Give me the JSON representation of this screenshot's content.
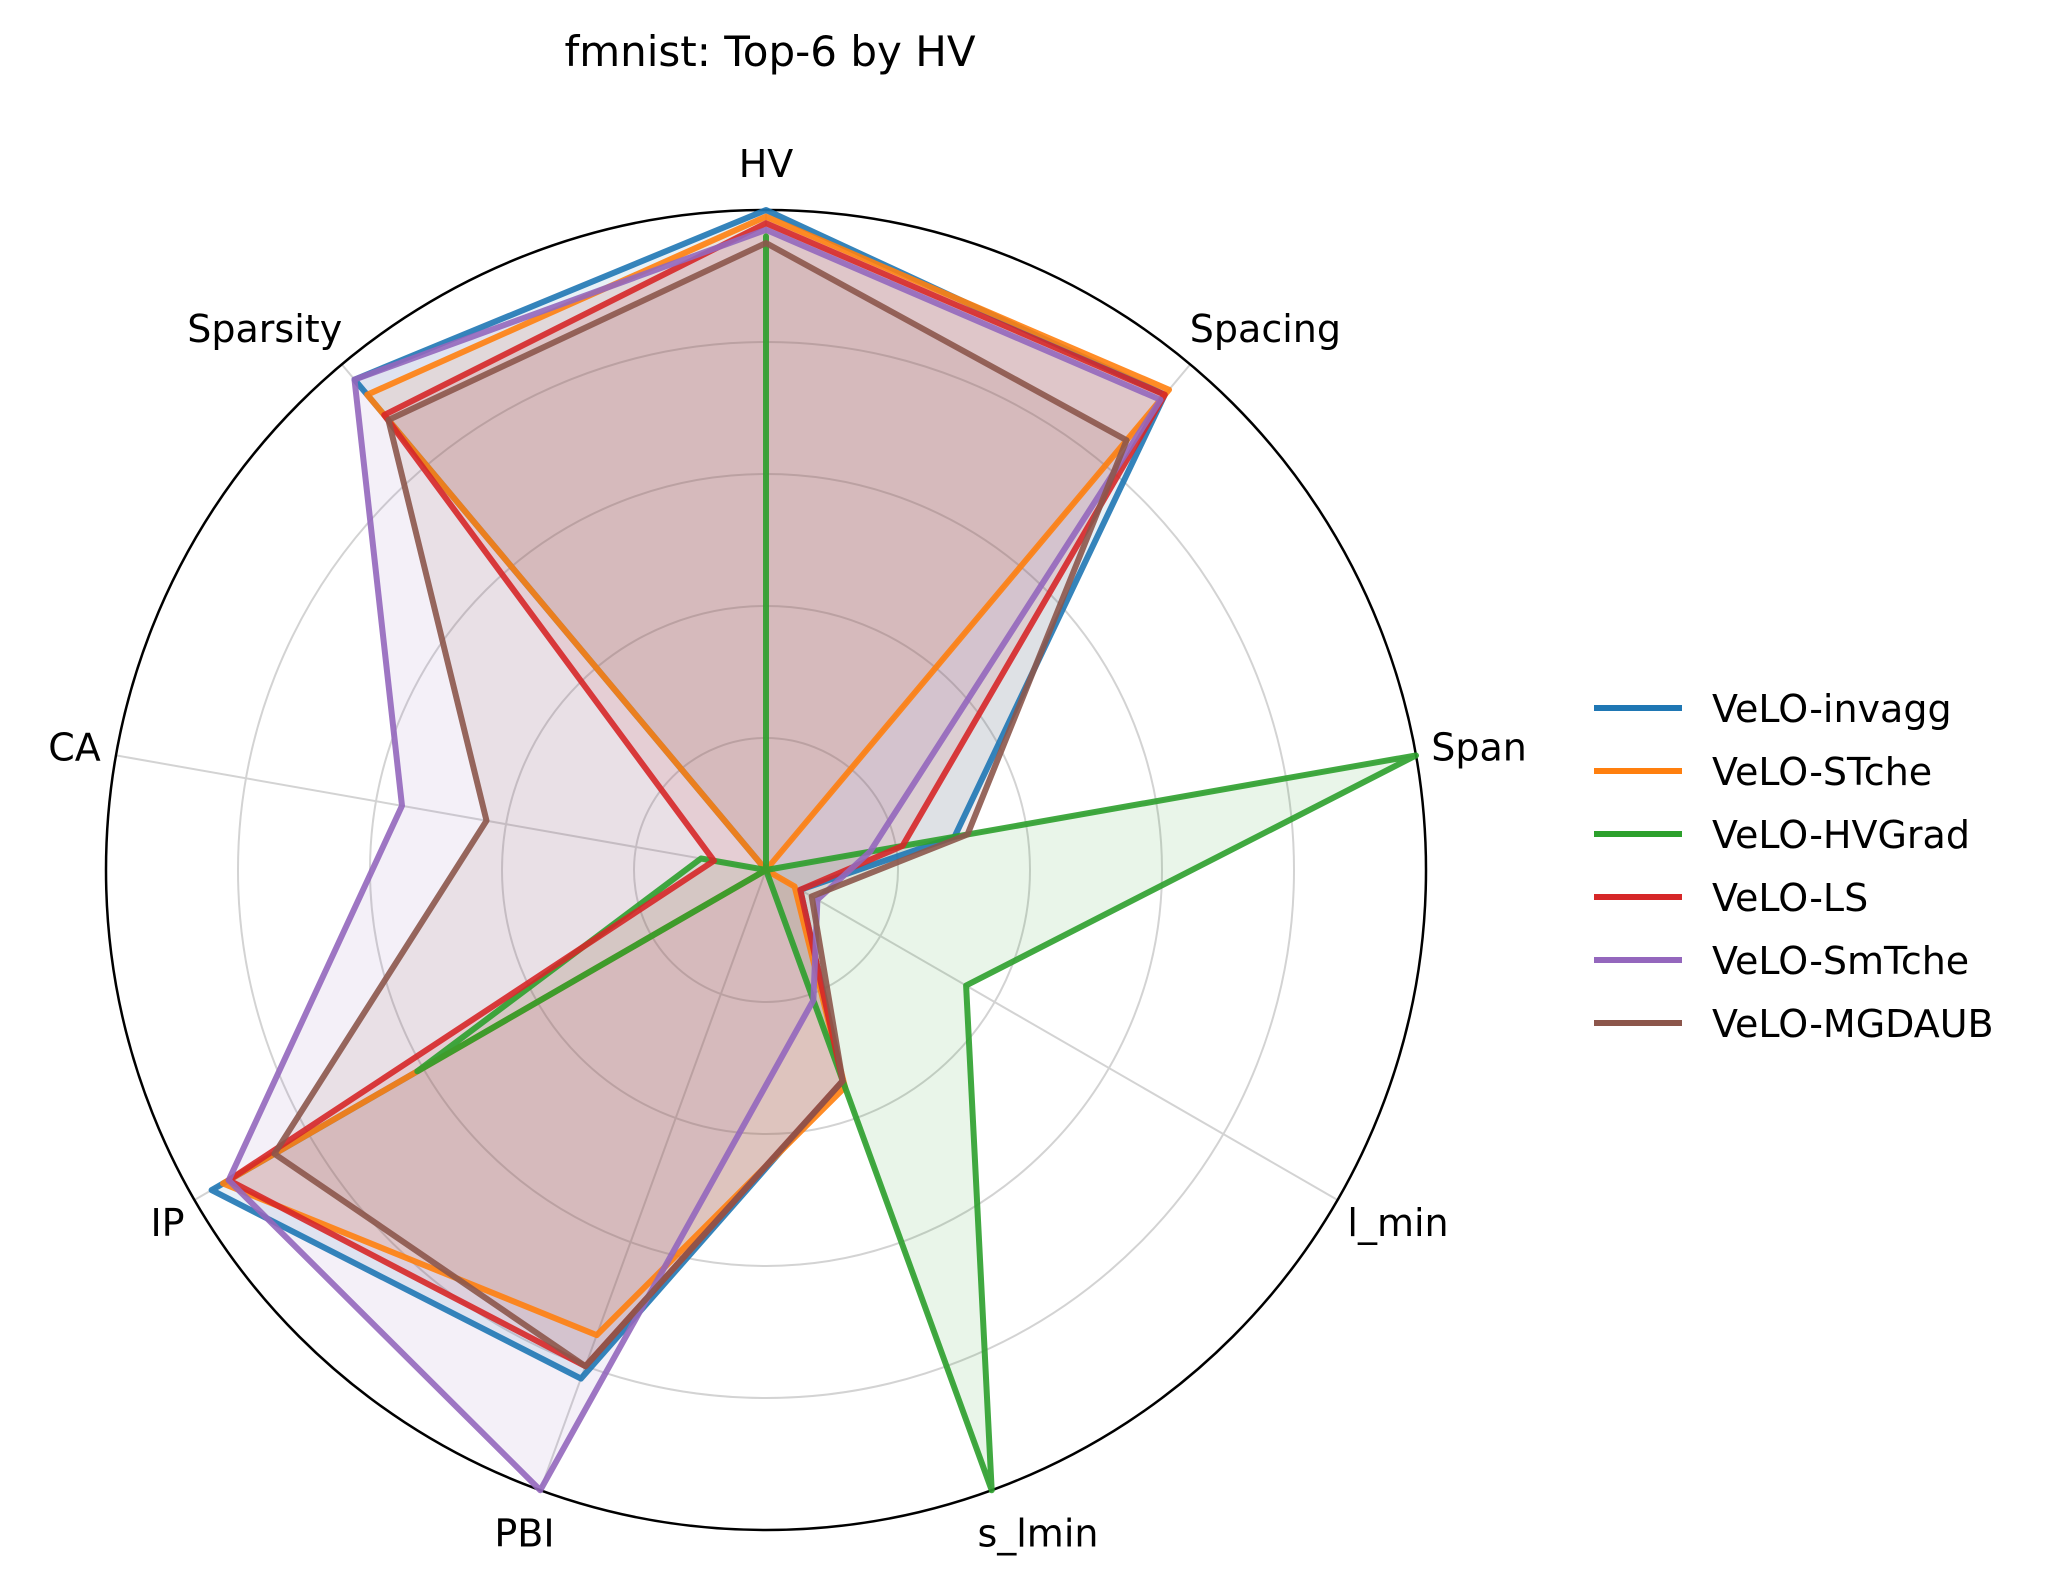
{
  "chart_data": {
    "type": "radar",
    "title": "fmnist: Top-6 by HV",
    "axes": [
      "HV",
      "Spacing",
      "Span",
      "l_min",
      "s_lmin",
      "PBI",
      "IP",
      "CA",
      "Sparsity"
    ],
    "rlim": [
      0,
      1
    ],
    "grid": true,
    "rings": [
      0.2,
      0.4,
      0.6,
      0.8
    ],
    "legend_position": "right",
    "series": [
      {
        "name": "VeLO-invagg",
        "color": "#1f77b4",
        "values": [
          1.0,
          0.94,
          0.29,
          0.06,
          0.34,
          0.82,
          0.97,
          0.0,
          0.97
        ],
        "filled": true,
        "fill_opacity": 0.1
      },
      {
        "name": "VeLO-STche",
        "color": "#ff7f0e",
        "values": [
          0.99,
          0.95,
          0.0,
          0.05,
          0.35,
          0.75,
          0.95,
          0.0,
          0.94
        ],
        "filled": true,
        "fill_opacity": 0.1
      },
      {
        "name": "VeLO-HVGrad",
        "color": "#2ca02c",
        "values": [
          0.96,
          0.0,
          1.0,
          0.35,
          1.0,
          0.0,
          0.61,
          0.1,
          0.0
        ],
        "filled": true,
        "fill_opacity": 0.1
      },
      {
        "name": "VeLO-LS",
        "color": "#d62728",
        "values": [
          0.98,
          0.94,
          0.21,
          0.06,
          0.34,
          0.8,
          0.94,
          0.08,
          0.9
        ],
        "filled": true,
        "fill_opacity": 0.1
      },
      {
        "name": "VeLO-SmTche",
        "color": "#9467bd",
        "values": [
          0.97,
          0.93,
          0.16,
          0.09,
          0.21,
          1.0,
          0.94,
          0.56,
          0.97
        ],
        "filled": true,
        "fill_opacity": 0.1
      },
      {
        "name": "VeLO-MGDAUB",
        "color": "#8c564b",
        "values": [
          0.95,
          0.85,
          0.31,
          0.08,
          0.34,
          0.8,
          0.86,
          0.43,
          0.89
        ],
        "filled": true,
        "fill_opacity": 0.1
      }
    ]
  }
}
